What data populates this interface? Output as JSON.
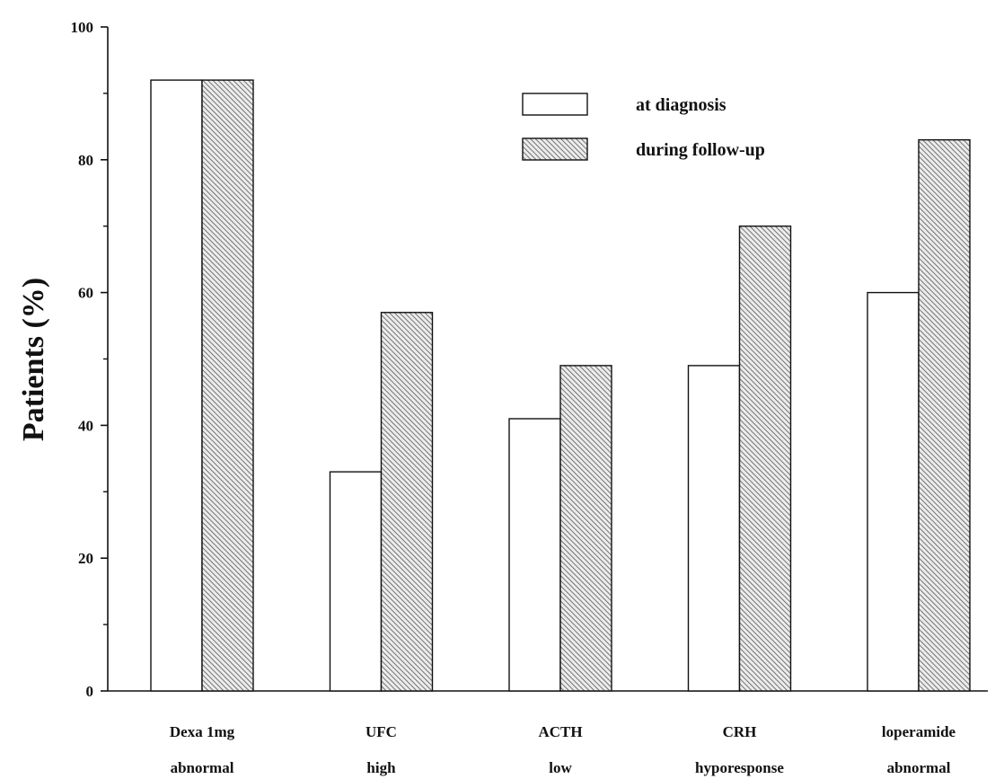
{
  "chart_data": {
    "type": "bar",
    "title": "",
    "xlabel": "",
    "ylabel": "Patients (%)",
    "ylim": [
      0,
      100
    ],
    "yticks": [
      0,
      20,
      40,
      60,
      80,
      100
    ],
    "grid": false,
    "legend_position": "top-right",
    "categories": [
      [
        "Dexa 1mg",
        "abnormal"
      ],
      [
        "UFC",
        "high"
      ],
      [
        "ACTH",
        "low"
      ],
      [
        "CRH",
        "hyporesponse"
      ],
      [
        "loperamide",
        "abnormal"
      ]
    ],
    "series": [
      {
        "name": "at diagnosis",
        "values": [
          92,
          33,
          41,
          49,
          60
        ],
        "fill": "plain-white"
      },
      {
        "name": "during follow-up",
        "values": [
          92,
          57,
          49,
          70,
          83
        ],
        "fill": "diagonal-hatch"
      }
    ]
  },
  "colors": {
    "axis": "#111111",
    "bar_outline": "#111111",
    "bar_plain": "#ffffff",
    "hatch": "#555555"
  }
}
